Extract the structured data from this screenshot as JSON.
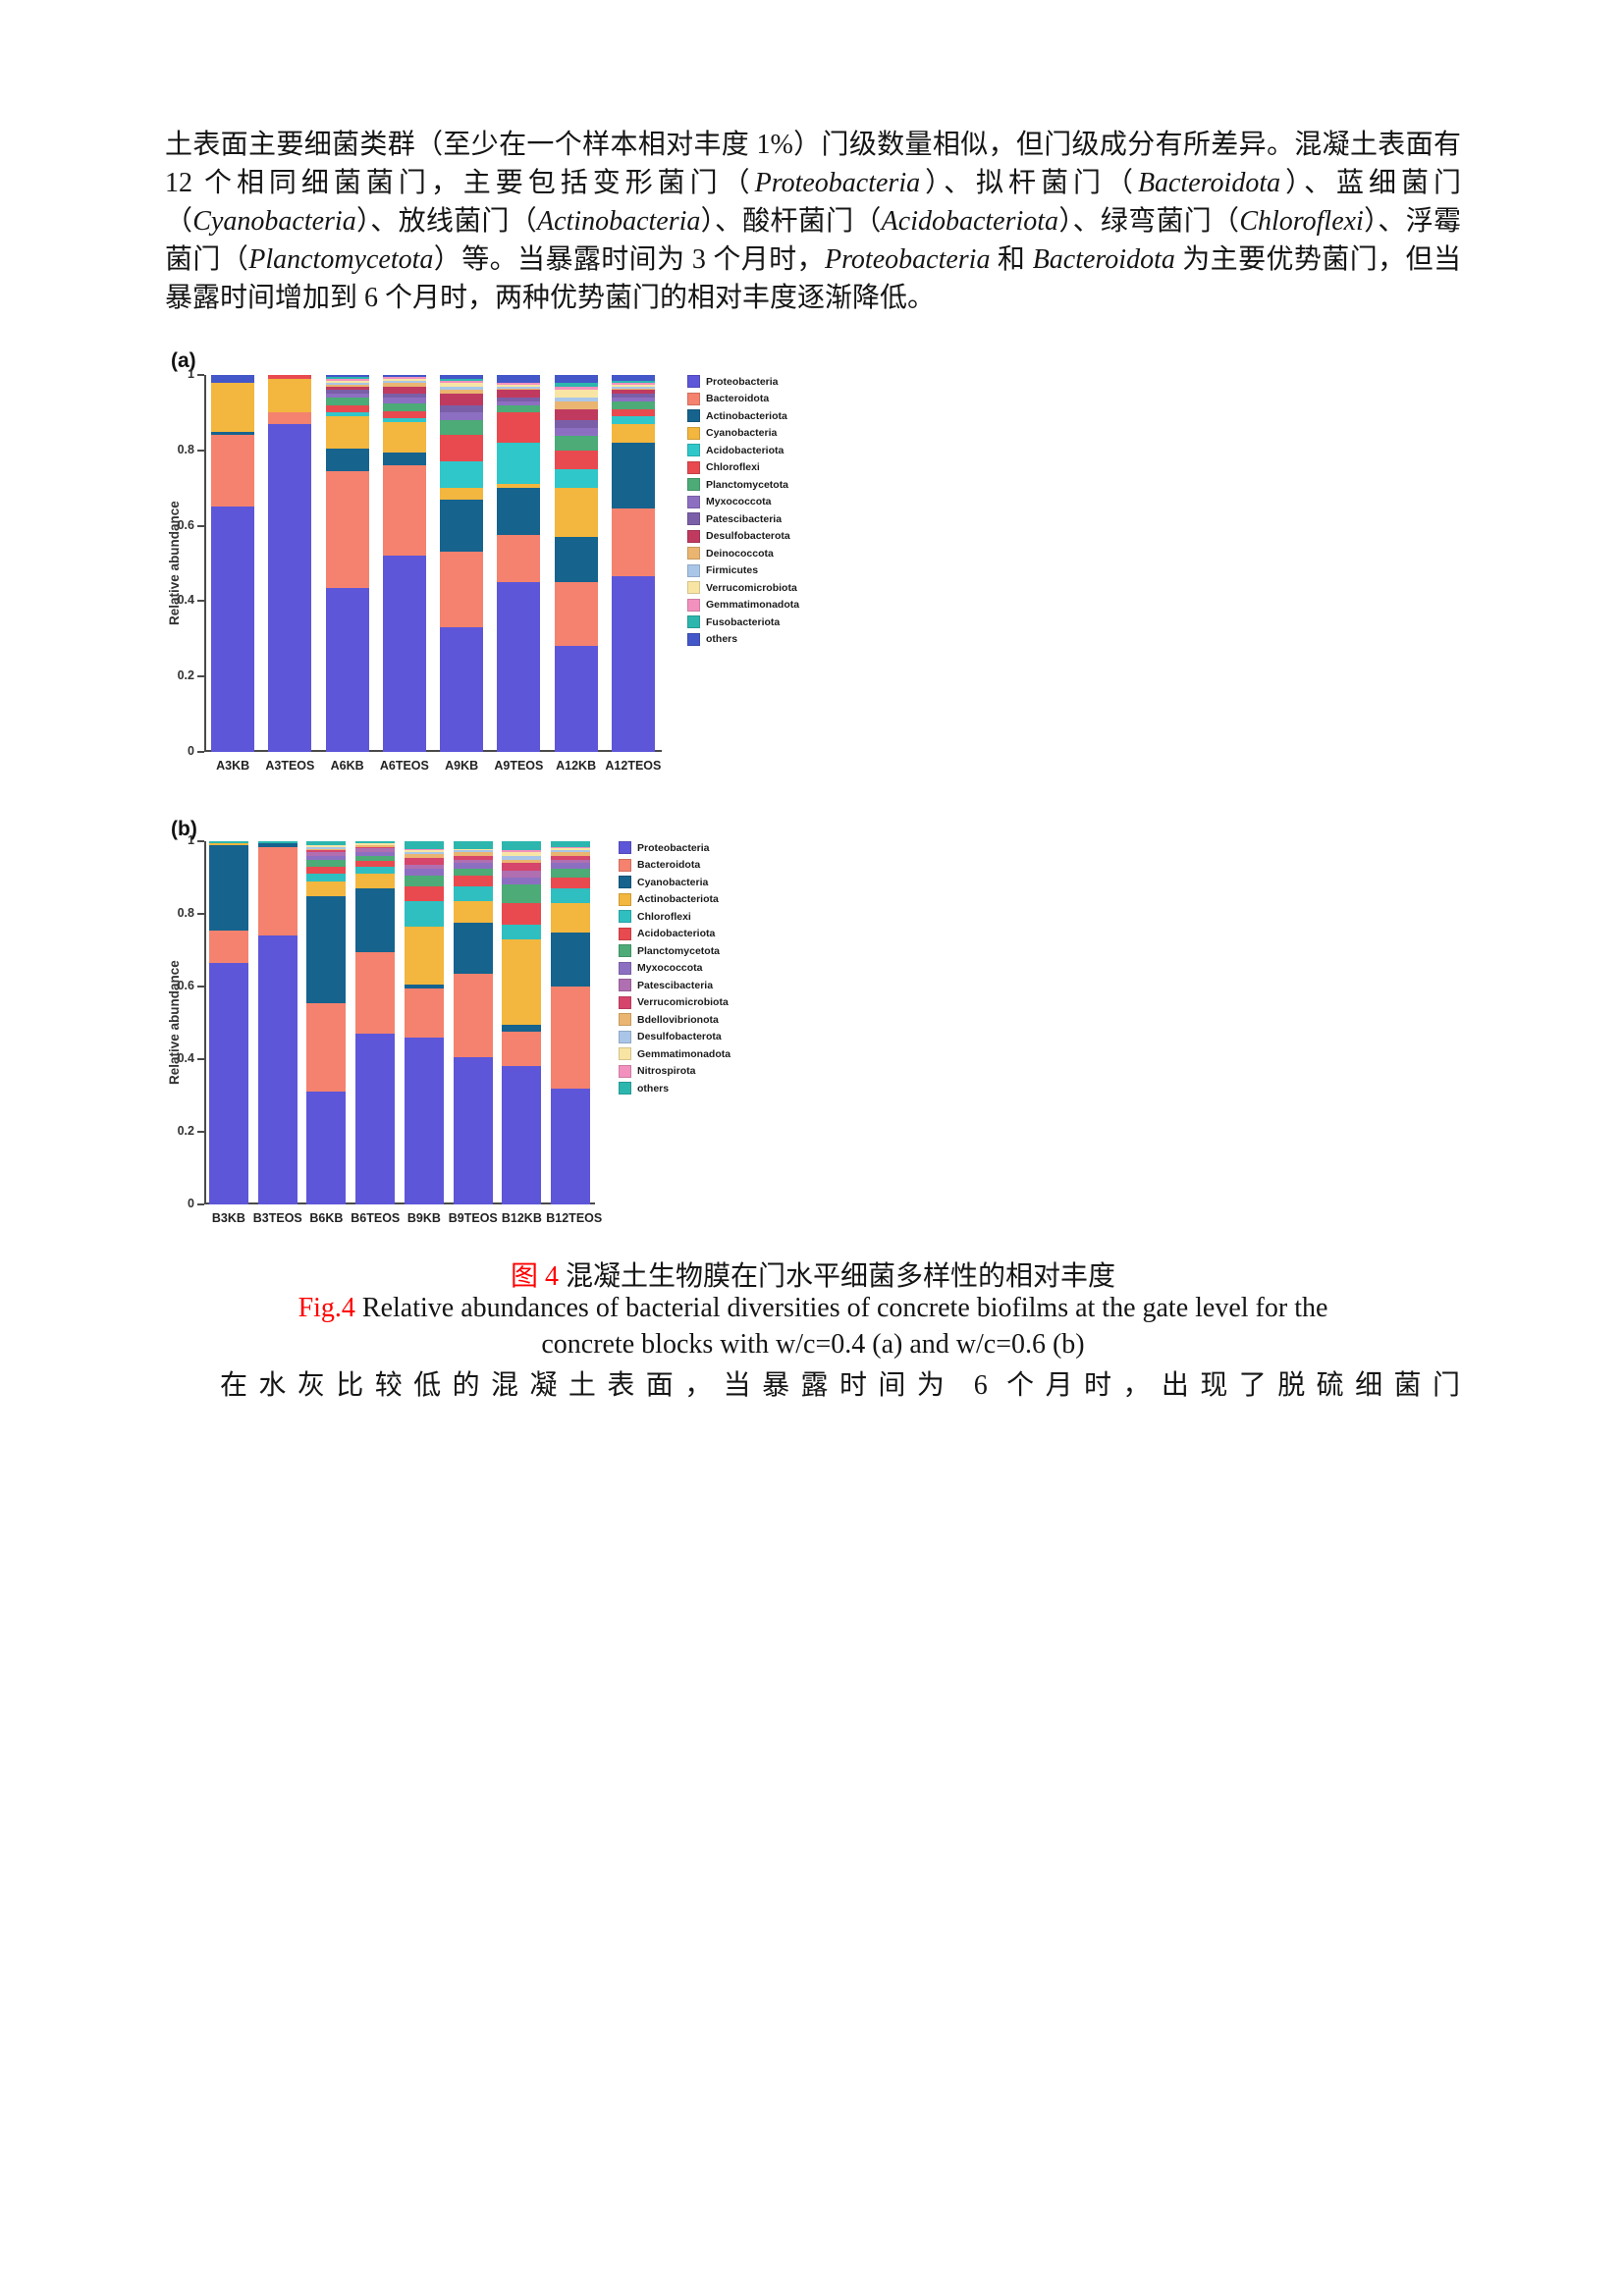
{
  "colors": {
    "caption_accent": "#ff0000",
    "page_background": "#ffffff",
    "body_text": "#151515"
  },
  "paragraph_top": {
    "runs": [
      {
        "t": "土表面主要细菌类群（至少在一个样本相对丰度 1%）门级数量相似，但门级成分有所差异。混凝土表面有 12 个相同细菌菌门，主要包括变形菌门（"
      },
      {
        "t": "Proteobacteria",
        "i": true
      },
      {
        "t": "）、拟杆菌门（"
      },
      {
        "t": "Bacteroidota",
        "i": true
      },
      {
        "t": "）、蓝细菌门（"
      },
      {
        "t": "Cyanobacteria",
        "i": true
      },
      {
        "t": "）、放线菌门（"
      },
      {
        "t": "Actinobacteria",
        "i": true
      },
      {
        "t": "）、酸杆菌门（"
      },
      {
        "t": "Acidobacteriota",
        "i": true
      },
      {
        "t": "）、绿弯菌门（"
      },
      {
        "t": "Chloroflexi",
        "i": true
      },
      {
        "t": "）、浮霉菌门（"
      },
      {
        "t": "Planctomycetota",
        "i": true
      },
      {
        "t": "）等。当暴露时间为 3 个月时，"
      },
      {
        "t": "Proteobacteria",
        "i": true
      },
      {
        "t": " 和 "
      },
      {
        "t": "Bacteroidota",
        "i": true
      },
      {
        "t": " 为主要优势菌门，但当暴露时间增加到 6 个月时，两种优势菌门的相对丰度逐渐降低。"
      }
    ]
  },
  "figure": {
    "caption_cn": {
      "prefix": "图 4",
      "text": " 混凝土生物膜在门水平细菌多样性的相对丰度"
    },
    "caption_en": {
      "prefix": "Fig.4",
      "line1": " Relative abundances of bacterial diversities of concrete biofilms at the gate level for the",
      "line2": "concrete blocks with w/c=0.4 (a) and w/c=0.6 (b)"
    }
  },
  "paragraph_bottom": {
    "text": "在水灰比较低的混凝土表面，当暴露时间为 6 个月时，出现了脱硫细菌门"
  },
  "chart_data": [
    {
      "type": "bar",
      "stacked": true,
      "panel_label": "(a)",
      "ylabel": "Relative abundance",
      "xlabel": "",
      "ylim": [
        0,
        1
      ],
      "yticks": [
        0,
        0.2,
        0.4,
        0.6,
        0.8,
        1
      ],
      "grid": false,
      "legend_position": "right",
      "categories": [
        "A3KB",
        "A3TEOS",
        "A6KB",
        "A6TEOS",
        "A9KB",
        "A9TEOS",
        "A12KB",
        "A12TEOS"
      ],
      "series": [
        {
          "name": "Proteobacteria",
          "color": "#5e56d8",
          "values": [
            0.65,
            0.87,
            0.435,
            0.52,
            0.33,
            0.45,
            0.28,
            0.465
          ]
        },
        {
          "name": "Bacteroidota",
          "color": "#f4826e",
          "values": [
            0.19,
            0.03,
            0.31,
            0.24,
            0.2,
            0.125,
            0.17,
            0.18
          ]
        },
        {
          "name": "Actinobacteriota",
          "color": "#16638e",
          "values": [
            0.01,
            0.0,
            0.06,
            0.035,
            0.14,
            0.125,
            0.12,
            0.175
          ]
        },
        {
          "name": "Cyanobacteria",
          "color": "#f3b63e",
          "values": [
            0.13,
            0.09,
            0.085,
            0.08,
            0.03,
            0.01,
            0.13,
            0.05
          ]
        },
        {
          "name": "Acidobacteriota",
          "color": "#30c7ca",
          "values": [
            0.0,
            0.0,
            0.01,
            0.01,
            0.07,
            0.11,
            0.05,
            0.02
          ]
        },
        {
          "name": "Chloroflexi",
          "color": "#e84a4f",
          "values": [
            0.0,
            0.01,
            0.02,
            0.02,
            0.07,
            0.08,
            0.05,
            0.02
          ]
        },
        {
          "name": "Planctomycetota",
          "color": "#4cab77",
          "values": [
            0.0,
            0.0,
            0.02,
            0.02,
            0.04,
            0.02,
            0.04,
            0.02
          ]
        },
        {
          "name": "Myxococcota",
          "color": "#8d6fc2",
          "values": [
            0.0,
            0.0,
            0.01,
            0.015,
            0.02,
            0.01,
            0.02,
            0.01
          ]
        },
        {
          "name": "Patescibacteria",
          "color": "#7a5fa8",
          "values": [
            0.0,
            0.0,
            0.01,
            0.01,
            0.02,
            0.01,
            0.02,
            0.01
          ]
        },
        {
          "name": "Desulfobacterota",
          "color": "#c03a60",
          "values": [
            0.0,
            0.0,
            0.01,
            0.02,
            0.03,
            0.02,
            0.03,
            0.01
          ]
        },
        {
          "name": "Deinococcota",
          "color": "#eab570",
          "values": [
            0.0,
            0.0,
            0.005,
            0.01,
            0.01,
            0.005,
            0.02,
            0.005
          ]
        },
        {
          "name": "Firmicutes",
          "color": "#a9c6e8",
          "values": [
            0.0,
            0.0,
            0.005,
            0.005,
            0.01,
            0.005,
            0.01,
            0.005
          ]
        },
        {
          "name": "Verrucomicrobiota",
          "color": "#f8e5a4",
          "values": [
            0.0,
            0.0,
            0.005,
            0.005,
            0.01,
            0.005,
            0.02,
            0.005
          ]
        },
        {
          "name": "Gemmatimonadota",
          "color": "#f291be",
          "values": [
            0.0,
            0.0,
            0.005,
            0.005,
            0.005,
            0.005,
            0.01,
            0.005
          ]
        },
        {
          "name": "Fusobacteriota",
          "color": "#2cb6ae",
          "values": [
            0.0,
            0.0,
            0.005,
            0.0,
            0.005,
            0.0,
            0.01,
            0.005
          ]
        },
        {
          "name": "others",
          "color": "#4357c9",
          "values": [
            0.02,
            0.0,
            0.005,
            0.005,
            0.01,
            0.02,
            0.02,
            0.015
          ]
        }
      ]
    },
    {
      "type": "bar",
      "stacked": true,
      "panel_label": "(b)",
      "ylabel": "Relative abundance",
      "xlabel": "",
      "ylim": [
        0,
        1
      ],
      "yticks": [
        0,
        0.2,
        0.4,
        0.6,
        0.8,
        1
      ],
      "grid": false,
      "legend_position": "right",
      "categories": [
        "B3KB",
        "B3TEOS",
        "B6KB",
        "B6TEOS",
        "B9KB",
        "B9TEOS",
        "B12KB",
        "B12TEOS"
      ],
      "series": [
        {
          "name": "Proteobacteria",
          "color": "#5e56d8",
          "values": [
            0.665,
            0.74,
            0.31,
            0.47,
            0.46,
            0.405,
            0.38,
            0.32
          ]
        },
        {
          "name": "Bacteroidota",
          "color": "#f4826e",
          "values": [
            0.09,
            0.245,
            0.245,
            0.225,
            0.135,
            0.23,
            0.095,
            0.28
          ]
        },
        {
          "name": "Cyanobacteria",
          "color": "#16638e",
          "values": [
            0.235,
            0.01,
            0.295,
            0.175,
            0.01,
            0.14,
            0.02,
            0.15
          ]
        },
        {
          "name": "Actinobacteriota",
          "color": "#f3b63e",
          "values": [
            0.005,
            0.0,
            0.04,
            0.04,
            0.16,
            0.06,
            0.235,
            0.08
          ]
        },
        {
          "name": "Chloroflexi",
          "color": "#2fbfc0",
          "values": [
            0.0,
            0.0,
            0.02,
            0.02,
            0.07,
            0.04,
            0.04,
            0.04
          ]
        },
        {
          "name": "Acidobacteriota",
          "color": "#e84a4f",
          "values": [
            0.0,
            0.0,
            0.02,
            0.015,
            0.04,
            0.03,
            0.06,
            0.03
          ]
        },
        {
          "name": "Planctomycetota",
          "color": "#4cab77",
          "values": [
            0.0,
            0.0,
            0.02,
            0.015,
            0.03,
            0.02,
            0.05,
            0.025
          ]
        },
        {
          "name": "Myxococcota",
          "color": "#8d6fc2",
          "values": [
            0.0,
            0.0,
            0.01,
            0.01,
            0.02,
            0.015,
            0.02,
            0.015
          ]
        },
        {
          "name": "Patescibacteria",
          "color": "#b06fb0",
          "values": [
            0.0,
            0.0,
            0.01,
            0.01,
            0.01,
            0.01,
            0.02,
            0.01
          ]
        },
        {
          "name": "Verrucomicrobiota",
          "color": "#d6456b",
          "values": [
            0.0,
            0.0,
            0.005,
            0.005,
            0.02,
            0.01,
            0.02,
            0.01
          ]
        },
        {
          "name": "Bdellovibrionota",
          "color": "#eab570",
          "values": [
            0.0,
            0.0,
            0.005,
            0.005,
            0.01,
            0.01,
            0.01,
            0.01
          ]
        },
        {
          "name": "Desulfobacterota",
          "color": "#a9c6e8",
          "values": [
            0.0,
            0.0,
            0.005,
            0.0,
            0.005,
            0.005,
            0.01,
            0.005
          ]
        },
        {
          "name": "Gemmatimonadota",
          "color": "#f8e5a4",
          "values": [
            0.0,
            0.0,
            0.005,
            0.005,
            0.005,
            0.005,
            0.01,
            0.005
          ]
        },
        {
          "name": "Nitrospirota",
          "color": "#f291be",
          "values": [
            0.0,
            0.0,
            0.0,
            0.0,
            0.005,
            0.0,
            0.005,
            0.005
          ]
        },
        {
          "name": "others",
          "color": "#2cb6ae",
          "values": [
            0.005,
            0.005,
            0.01,
            0.005,
            0.02,
            0.02,
            0.025,
            0.015
          ]
        }
      ]
    }
  ]
}
